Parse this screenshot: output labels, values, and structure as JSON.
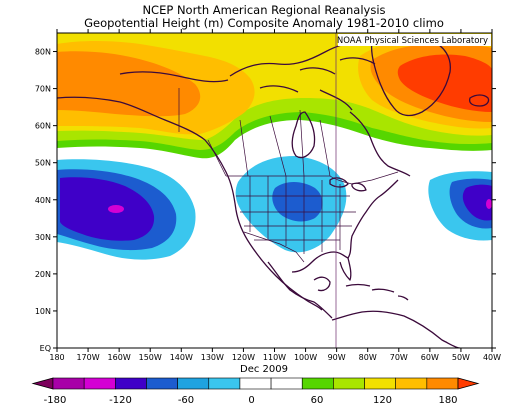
{
  "header": {
    "title": "NCEP North American Regional Reanalysis",
    "subtitle": "Geopotential Height (m) Composite Anomaly 1981-2010 climo"
  },
  "map": {
    "credit": "NOAA Physical Sciences Laboratory",
    "date": "Dec 2009",
    "lat_ticks": [
      "EQ",
      "10N",
      "20N",
      "30N",
      "40N",
      "50N",
      "60N",
      "70N",
      "80N"
    ],
    "lon_ticks": [
      "180",
      "170W",
      "160W",
      "150W",
      "140W",
      "130W",
      "120W",
      "110W",
      "100W",
      "90W",
      "80W",
      "70W",
      "60W",
      "50W",
      "40W"
    ],
    "lat_range": [
      0,
      85
    ],
    "lon_range": [
      -180,
      -40
    ],
    "anomaly_centers": [
      {
        "name": "north-atlantic-high",
        "lon": -45,
        "lat": 70,
        "level": "max"
      },
      {
        "name": "alaska-high",
        "lon": -150,
        "lat": 65,
        "level": "high"
      },
      {
        "name": "north-pacific-low",
        "lon": -160,
        "lat": 37,
        "level": "min"
      },
      {
        "name": "atlantic-low",
        "lon": -40,
        "lat": 39,
        "level": "min"
      },
      {
        "name": "central-us-low",
        "lon": -103,
        "lat": 40,
        "level": "low"
      }
    ]
  },
  "colorbar": {
    "labels": [
      "-180",
      "-120",
      "-60",
      "0",
      "60",
      "120",
      "180"
    ],
    "colors": [
      "#7c005c",
      "#a800a8",
      "#d400d4",
      "#3f00c8",
      "#1c5ccf",
      "#1fa3e0",
      "#3ac6ee",
      "#ffffff",
      "#ffffff",
      "#56d600",
      "#a9e500",
      "#f2e000",
      "#ffbe00",
      "#ff8a00",
      "#ff3c00"
    ]
  }
}
